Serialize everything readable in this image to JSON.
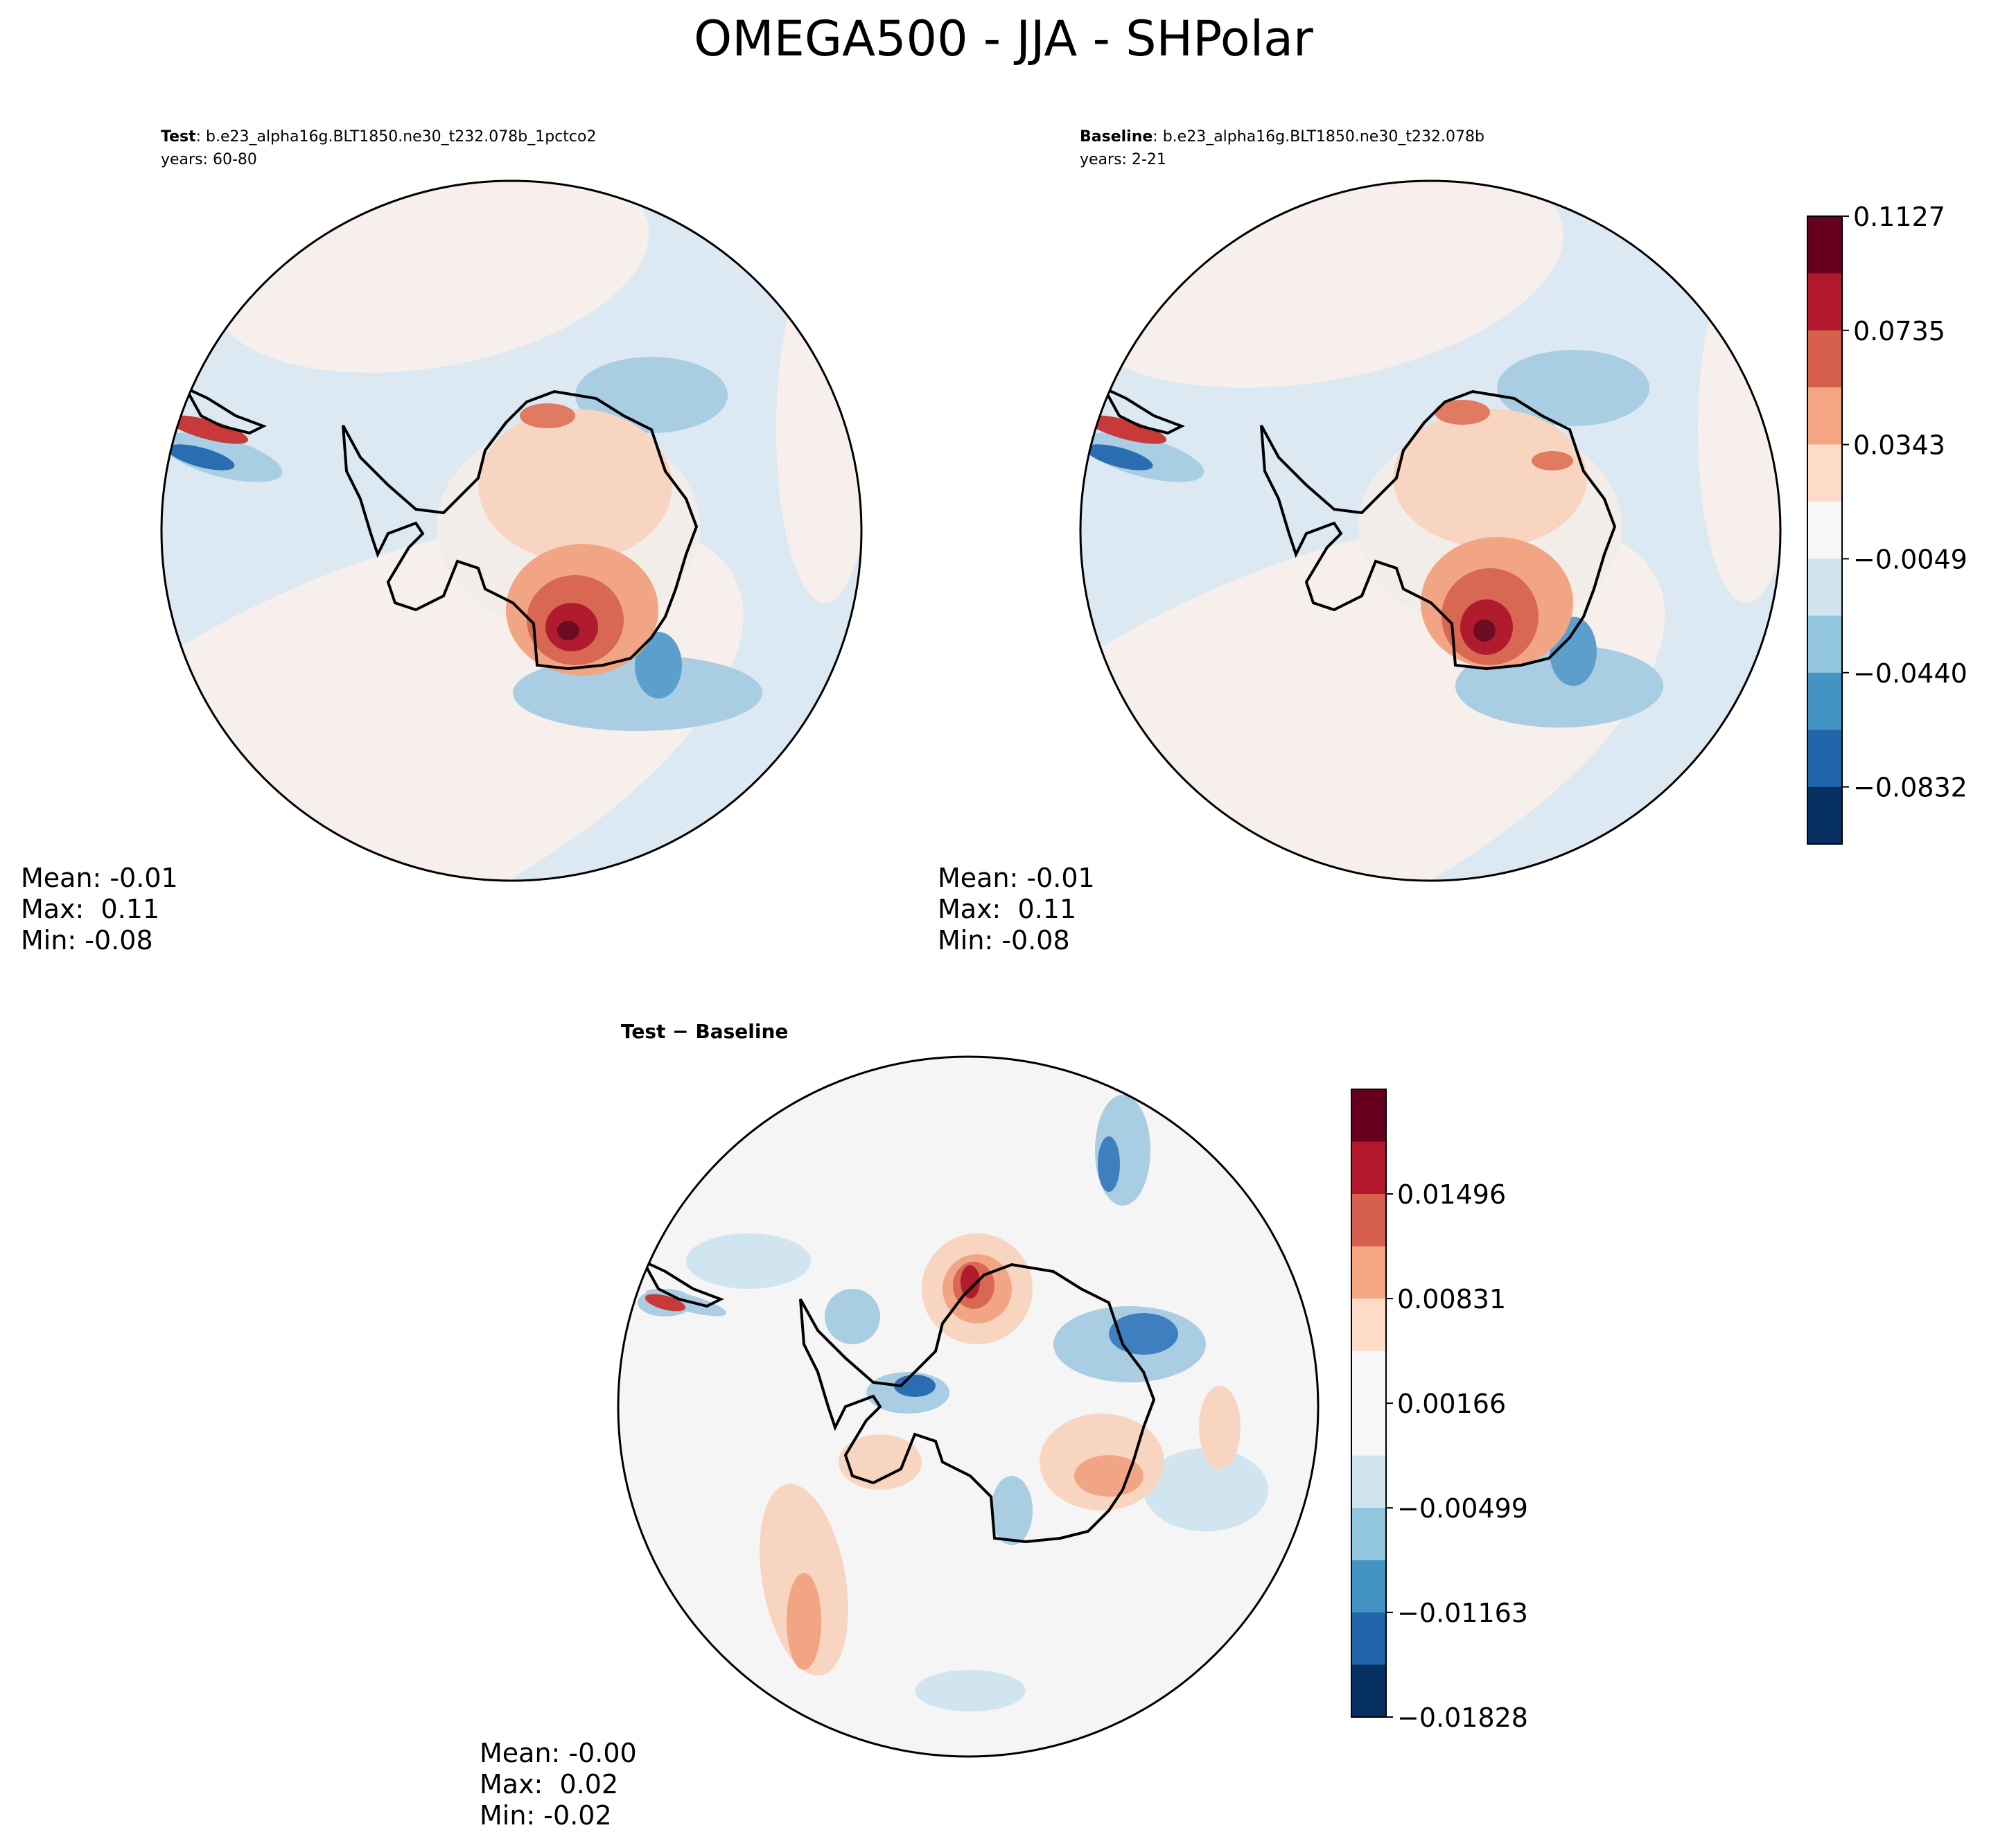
{
  "figure": {
    "title": "OMEGA500 - JJA - SHPolar"
  },
  "panels": {
    "test": {
      "label": "Test",
      "case": ": b.e23_alpha16g.BLT1850.ne30_t232.078b_1pctco2",
      "years": "years: 60-80",
      "stats": {
        "mean": "Mean: -0.01",
        "max": "Max:  0.11",
        "min": "Min: -0.08"
      }
    },
    "baseline": {
      "label": "Baseline",
      "case": ": b.e23_alpha16g.BLT1850.ne30_t232.078b",
      "years": "years: 2-21",
      "stats": {
        "mean": "Mean: -0.01",
        "max": "Max:  0.11",
        "min": "Min: -0.08"
      }
    },
    "diff": {
      "label": "Test − Baseline",
      "stats": {
        "mean": "Mean: -0.00",
        "max": "Max:  0.02",
        "min": "Min: -0.02"
      }
    }
  },
  "chart_data": [
    {
      "type": "heatmap",
      "title": "Test",
      "projection": "south-polar stereographic",
      "field": "OMEGA500",
      "season": "JJA",
      "mean": -0.01,
      "max": 0.11,
      "min": -0.08,
      "colormap": "RdBu_r",
      "shares_colorbar_with": "Baseline"
    },
    {
      "type": "heatmap",
      "title": "Baseline",
      "projection": "south-polar stereographic",
      "field": "OMEGA500",
      "season": "JJA",
      "mean": -0.01,
      "max": 0.11,
      "min": -0.08,
      "colormap": "RdBu_r",
      "colorbar": {
        "ticks": [
          0.1127,
          0.0735,
          0.0343,
          -0.0049,
          -0.044,
          -0.0832
        ],
        "tick_labels": [
          "0.1127",
          "0.0735",
          "0.0343",
          "−0.0049",
          "−0.0440",
          "−0.0832"
        ],
        "range": [
          -0.1028,
          0.1127
        ],
        "levels": 11,
        "colors": [
          "#67001f",
          "#b2182b",
          "#d6604d",
          "#f4a582",
          "#fddbc7",
          "#f7f7f7",
          "#d1e5f0",
          "#92c5de",
          "#4393c3",
          "#2166ac",
          "#053061"
        ]
      }
    },
    {
      "type": "heatmap",
      "title": "Test − Baseline",
      "projection": "south-polar stereographic",
      "field": "OMEGA500",
      "season": "JJA",
      "mean": -0.0,
      "max": 0.02,
      "min": -0.02,
      "colormap": "RdBu_r",
      "colorbar": {
        "ticks": [
          0.01496,
          0.00831,
          0.00166,
          -0.00499,
          -0.01163,
          -0.01828
        ],
        "tick_labels": [
          "0.01496",
          "0.00831",
          "0.00166",
          "−0.00499",
          "−0.01163",
          "−0.01828"
        ],
        "range": [
          -0.01828,
          0.02161
        ],
        "levels": 12,
        "colors": [
          "#67001f",
          "#b2182b",
          "#d6604d",
          "#f4a582",
          "#fddbc7",
          "#f7f7f7",
          "#d1e5f0",
          "#92c5de",
          "#4393c3",
          "#2166ac",
          "#053061"
        ]
      }
    }
  ]
}
